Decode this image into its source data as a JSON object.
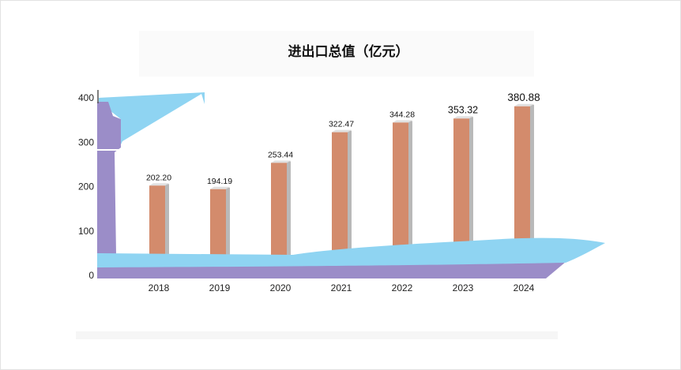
{
  "chart_data": {
    "type": "bar",
    "title": "进出口总值（亿元）",
    "categories": [
      "2018",
      "2019",
      "2020",
      "2021",
      "2022",
      "2023",
      "2024"
    ],
    "values": [
      202.2,
      194.19,
      253.44,
      322.47,
      344.28,
      353.32,
      380.88
    ],
    "value_labels": [
      "202.20",
      "194.19",
      "253.44",
      "322.47",
      "344.28",
      "353.32",
      "380.88"
    ],
    "yticks": [
      "0",
      "100",
      "200",
      "300",
      "400"
    ],
    "ylim": [
      0,
      400
    ],
    "grid": false,
    "legend": "none",
    "colors": {
      "bar_front": "#d38b6c",
      "bar_side": "#b9b9b9",
      "bar_top": "#e0e0e0",
      "water": "#8fd4f2",
      "hull": "#9b8dc8",
      "crane": "#9b8dc8",
      "crane_arm": "#8fd4f2"
    }
  }
}
